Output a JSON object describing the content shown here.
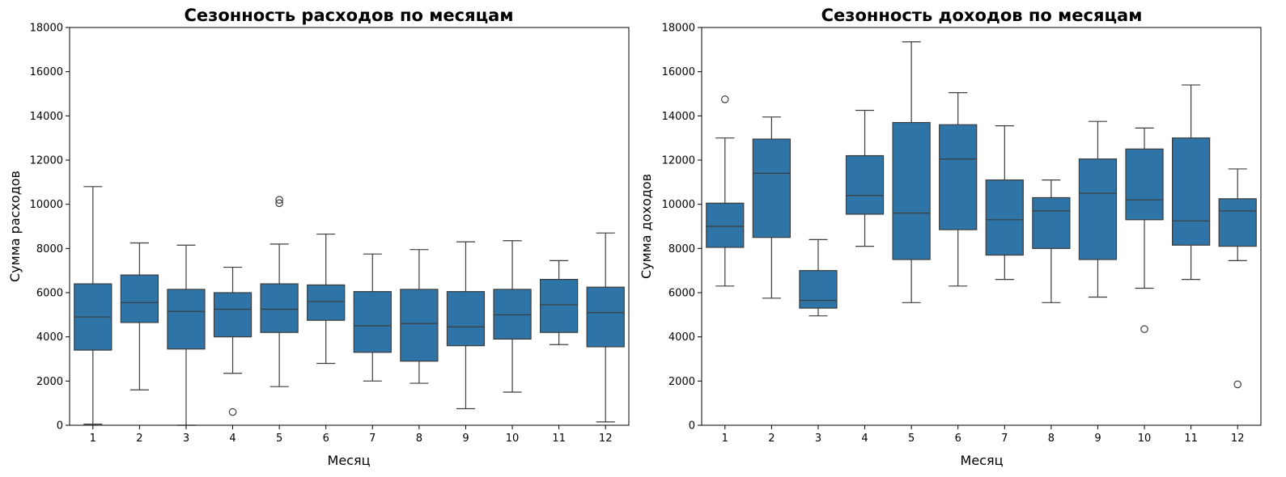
{
  "chart_data": [
    {
      "type": "box",
      "title": "Сезонность расходов по месяцам",
      "xlabel": "Месяц",
      "ylabel": "Сумма расходов",
      "ylim": [
        0,
        18000
      ],
      "yticks": [
        "0",
        "2000",
        "4000",
        "6000",
        "8000",
        "10000",
        "12000",
        "14000",
        "16000",
        "18000"
      ],
      "categories": [
        "1",
        "2",
        "3",
        "4",
        "5",
        "6",
        "7",
        "8",
        "9",
        "10",
        "11",
        "12"
      ],
      "color": "#2f74a6",
      "boxes": [
        {
          "min": 50,
          "q1": 3400,
          "median": 4900,
          "q3": 6400,
          "max": 10800,
          "outliers": []
        },
        {
          "min": 1600,
          "q1": 4650,
          "median": 5550,
          "q3": 6800,
          "max": 8250,
          "outliers": []
        },
        {
          "min": 0,
          "q1": 3450,
          "median": 5150,
          "q3": 6150,
          "max": 8150,
          "outliers": []
        },
        {
          "min": 2350,
          "q1": 4000,
          "median": 5250,
          "q3": 6000,
          "max": 7150,
          "outliers": [
            600
          ]
        },
        {
          "min": 1750,
          "q1": 4200,
          "median": 5250,
          "q3": 6400,
          "max": 8200,
          "outliers": [
            10050,
            10200
          ]
        },
        {
          "min": 2800,
          "q1": 4750,
          "median": 5600,
          "q3": 6350,
          "max": 8650,
          "outliers": []
        },
        {
          "min": 2000,
          "q1": 3300,
          "median": 4500,
          "q3": 6050,
          "max": 7750,
          "outliers": []
        },
        {
          "min": 1900,
          "q1": 2900,
          "median": 4600,
          "q3": 6150,
          "max": 7950,
          "outliers": []
        },
        {
          "min": 750,
          "q1": 3600,
          "median": 4450,
          "q3": 6050,
          "max": 8300,
          "outliers": []
        },
        {
          "min": 1500,
          "q1": 3900,
          "median": 5000,
          "q3": 6150,
          "max": 8350,
          "outliers": []
        },
        {
          "min": 3650,
          "q1": 4200,
          "median": 5450,
          "q3": 6600,
          "max": 7450,
          "outliers": []
        },
        {
          "min": 150,
          "q1": 3550,
          "median": 5100,
          "q3": 6250,
          "max": 8700,
          "outliers": []
        }
      ]
    },
    {
      "type": "box",
      "title": "Сезонность доходов по месяцам",
      "xlabel": "Месяц",
      "ylabel": "Сумма доходов",
      "ylim": [
        0,
        18000
      ],
      "yticks": [
        "0",
        "2000",
        "4000",
        "6000",
        "8000",
        "10000",
        "12000",
        "14000",
        "16000",
        "18000"
      ],
      "categories": [
        "1",
        "2",
        "3",
        "4",
        "5",
        "6",
        "7",
        "8",
        "9",
        "10",
        "11",
        "12"
      ],
      "color": "#2f74a6",
      "boxes": [
        {
          "min": 6300,
          "q1": 8050,
          "median": 9000,
          "q3": 10050,
          "max": 13000,
          "outliers": [
            14750
          ]
        },
        {
          "min": 5750,
          "q1": 8500,
          "median": 11400,
          "q3": 12950,
          "max": 13950,
          "outliers": []
        },
        {
          "min": 4950,
          "q1": 5300,
          "median": 5650,
          "q3": 7000,
          "max": 8400,
          "outliers": []
        },
        {
          "min": 8100,
          "q1": 9550,
          "median": 10400,
          "q3": 12200,
          "max": 14250,
          "outliers": []
        },
        {
          "min": 5550,
          "q1": 7500,
          "median": 9600,
          "q3": 13700,
          "max": 17350,
          "outliers": []
        },
        {
          "min": 6300,
          "q1": 8850,
          "median": 12050,
          "q3": 13600,
          "max": 15050,
          "outliers": []
        },
        {
          "min": 6600,
          "q1": 7700,
          "median": 9300,
          "q3": 11100,
          "max": 13550,
          "outliers": []
        },
        {
          "min": 5550,
          "q1": 8000,
          "median": 9700,
          "q3": 10300,
          "max": 11100,
          "outliers": []
        },
        {
          "min": 5800,
          "q1": 7500,
          "median": 10500,
          "q3": 12050,
          "max": 13750,
          "outliers": []
        },
        {
          "min": 6200,
          "q1": 9300,
          "median": 10200,
          "q3": 12500,
          "max": 13450,
          "outliers": [
            4350
          ]
        },
        {
          "min": 6600,
          "q1": 8150,
          "median": 9250,
          "q3": 13000,
          "max": 15400,
          "outliers": []
        },
        {
          "min": 7450,
          "q1": 8100,
          "median": 9700,
          "q3": 10250,
          "max": 11600,
          "outliers": [
            1850
          ]
        }
      ]
    }
  ]
}
